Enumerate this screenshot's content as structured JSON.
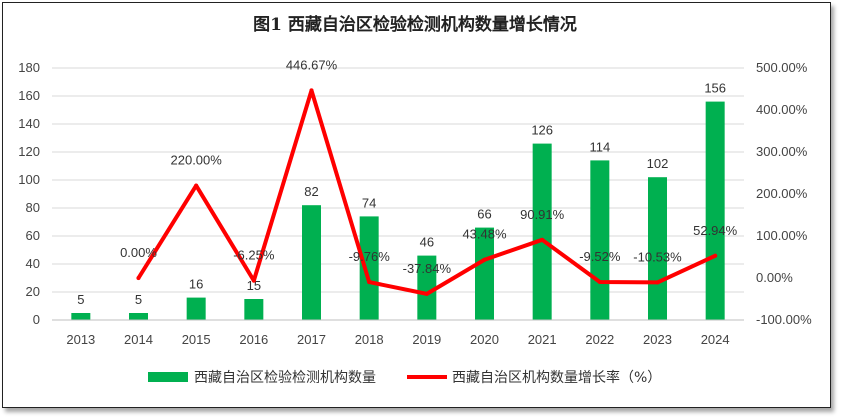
{
  "chart_data": {
    "type": "bar",
    "title": "图1 西藏自治区检验检测机构数量增长情况",
    "categories": [
      "2013",
      "2014",
      "2015",
      "2016",
      "2017",
      "2018",
      "2019",
      "2020",
      "2021",
      "2022",
      "2023",
      "2024"
    ],
    "series": [
      {
        "name": "西藏自治区检验检测机构数量",
        "type": "bar",
        "axis": "left",
        "color": "#00b050",
        "values": [
          5,
          5,
          16,
          15,
          82,
          74,
          46,
          66,
          126,
          114,
          102,
          156
        ],
        "labels": [
          "5",
          "5",
          "16",
          "15",
          "82",
          "74",
          "46",
          "66",
          "126",
          "114",
          "102",
          "156"
        ]
      },
      {
        "name": "西藏自治区机构数量增长率（%）",
        "type": "line",
        "axis": "right",
        "color": "#ff0000",
        "values": [
          null,
          0.0,
          220.0,
          -6.25,
          446.67,
          -9.76,
          -37.84,
          43.48,
          90.91,
          -9.52,
          -10.53,
          52.94
        ],
        "labels": [
          "",
          "0.00%",
          "220.00%",
          "-6.25%",
          "446.67%",
          "-9.76%",
          "-37.84%",
          "43.48%",
          "90.91%",
          "-9.52%",
          "-10.53%",
          "52.94%"
        ]
      }
    ],
    "y_left": {
      "min": 0,
      "max": 180,
      "step": 20,
      "ticks": [
        "0",
        "20",
        "40",
        "60",
        "80",
        "100",
        "120",
        "140",
        "160",
        "180"
      ]
    },
    "y_right": {
      "min": -100,
      "max": 500,
      "step": 100,
      "ticks": [
        "-100.00%",
        "0.00%",
        "100.00%",
        "200.00%",
        "300.00%",
        "400.00%",
        "500.00%"
      ]
    },
    "legend": "bottom",
    "grid": true
  }
}
